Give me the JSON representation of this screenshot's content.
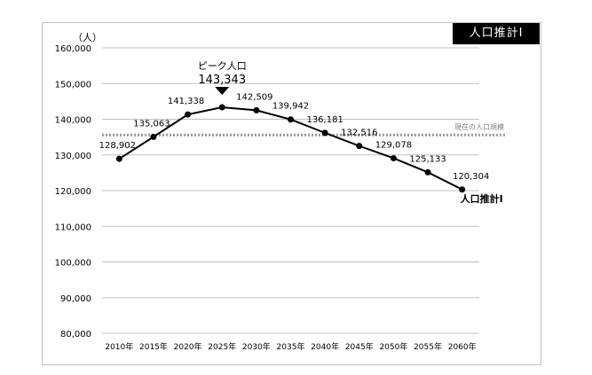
{
  "chart_data": {
    "type": "line",
    "title": "人口推計Ⅰ",
    "unit_label": "（人）",
    "categories": [
      "2010年",
      "2015年",
      "2020年",
      "2025年",
      "2030年",
      "2035年",
      "2040年",
      "2045年",
      "2050年",
      "2055年",
      "2060年"
    ],
    "series": [
      {
        "name": "人口推計Ⅰ",
        "values": [
          128902,
          135063,
          141338,
          143343,
          142509,
          139942,
          136181,
          132516,
          129078,
          125133,
          120304
        ],
        "value_labels": [
          "128,902",
          "135,063",
          "141,338",
          "",
          "142,509",
          "139,942",
          "136,181",
          "132,516",
          "129,078",
          "125,133",
          "120,304"
        ],
        "color": "#000000"
      }
    ],
    "yticks": [
      80000,
      90000,
      100000,
      110000,
      120000,
      130000,
      140000,
      150000,
      160000
    ],
    "ytick_labels": [
      "80,000",
      "90,000",
      "100,000",
      "110,000",
      "120,000",
      "130,000",
      "140,000",
      "150,000",
      "160,000"
    ],
    "ylim": [
      80000,
      160000
    ],
    "grid": true,
    "reference_line": {
      "label": "現在の人口規模",
      "value": 135600,
      "color": "#999999"
    },
    "peak_annotation": {
      "label": "ピーク人口",
      "value_label": "143,343",
      "category": "2025年"
    }
  }
}
